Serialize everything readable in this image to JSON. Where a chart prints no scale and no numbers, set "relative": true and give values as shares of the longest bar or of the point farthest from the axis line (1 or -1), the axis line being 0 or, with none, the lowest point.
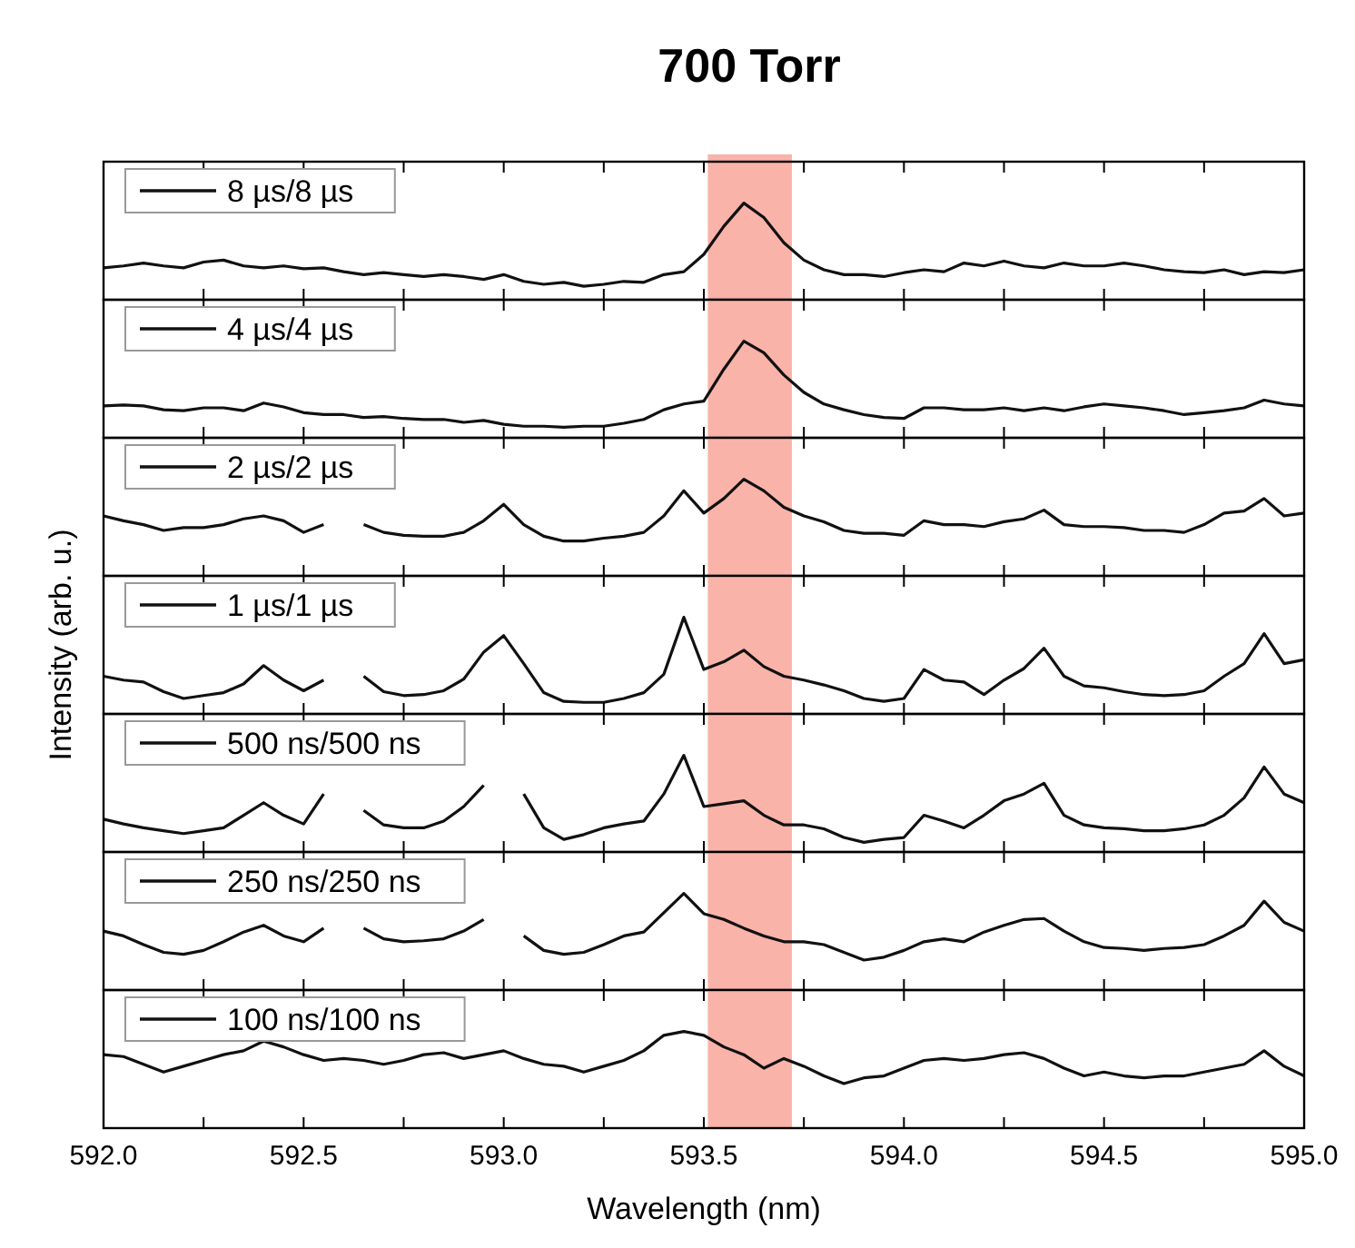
{
  "chart_data": [
    {
      "type": "line",
      "title": "700 Torr",
      "relative": true,
      "legend": "top left",
      "tick_labels": false,
      "xlim": [
        592,
        595
      ],
      "xticks": [
        {
          "value": 592,
          "label": null
        },
        {
          "value": 592.25,
          "label": null
        },
        {
          "value": 592.5,
          "label": null
        },
        {
          "value": 592.75,
          "label": null
        },
        {
          "value": 593,
          "label": null
        },
        {
          "value": 593.25,
          "label": null
        },
        {
          "value": 593.5,
          "label": null
        },
        {
          "value": 593.75,
          "label": null
        },
        {
          "value": 594,
          "label": null
        },
        {
          "value": 594.25,
          "label": null
        },
        {
          "value": 594.5,
          "label": null
        },
        {
          "value": 594.75,
          "label": null
        },
        {
          "value": 595,
          "label": null
        }
      ],
      "bands": [
        {
          "axis": "x",
          "from": 593.51,
          "to": 593.72,
          "color": "#f9b3a9"
        }
      ],
      "x": [
        592,
        592.05,
        592.1,
        592.15,
        592.2,
        592.25,
        592.3,
        592.35,
        592.4,
        592.45,
        592.5,
        592.55,
        592.6,
        592.65,
        592.7,
        592.75,
        592.8,
        592.85,
        592.9,
        592.95,
        593,
        593.05,
        593.1,
        593.15,
        593.2,
        593.25,
        593.3,
        593.35,
        593.4,
        593.45,
        593.5,
        593.55,
        593.6,
        593.65,
        593.7,
        593.75,
        593.8,
        593.85,
        593.9,
        593.95,
        594,
        594.05,
        594.1,
        594.15,
        594.2,
        594.25,
        594.3,
        594.35,
        594.4,
        594.45,
        594.5,
        594.55,
        594.6,
        594.65,
        594.7,
        594.75,
        594.8,
        594.85,
        594.9,
        594.95,
        595
      ],
      "series": [
        {
          "name": "8 µs/8 µs",
          "color": "#111111",
          "values": [
            0.33,
            0.35,
            0.38,
            0.35,
            0.33,
            0.39,
            0.41,
            0.35,
            0.33,
            0.35,
            0.32,
            0.33,
            0.29,
            0.26,
            0.28,
            0.26,
            0.24,
            0.26,
            0.24,
            0.21,
            0.26,
            0.19,
            0.16,
            0.18,
            0.14,
            0.16,
            0.19,
            0.18,
            0.26,
            0.29,
            0.47,
            0.76,
            1,
            0.85,
            0.59,
            0.41,
            0.31,
            0.26,
            0.26,
            0.24,
            0.28,
            0.31,
            0.29,
            0.38,
            0.35,
            0.4,
            0.35,
            0.33,
            0.38,
            0.35,
            0.35,
            0.38,
            0.35,
            0.31,
            0.29,
            0.28,
            0.31,
            0.26,
            0.29,
            0.28,
            0.31
          ]
        }
      ]
    },
    {
      "type": "line",
      "relative": true,
      "legend": "top left",
      "tick_labels": false,
      "xlim": [
        592,
        595
      ],
      "xticks": [
        {
          "value": 592,
          "label": null
        },
        {
          "value": 592.25,
          "label": null
        },
        {
          "value": 592.5,
          "label": null
        },
        {
          "value": 592.75,
          "label": null
        },
        {
          "value": 593,
          "label": null
        },
        {
          "value": 593.25,
          "label": null
        },
        {
          "value": 593.5,
          "label": null
        },
        {
          "value": 593.75,
          "label": null
        },
        {
          "value": 594,
          "label": null
        },
        {
          "value": 594.25,
          "label": null
        },
        {
          "value": 594.5,
          "label": null
        },
        {
          "value": 594.75,
          "label": null
        },
        {
          "value": 595,
          "label": null
        }
      ],
      "bands": [
        {
          "axis": "x",
          "from": 593.51,
          "to": 593.72,
          "color": "#f9b3a9"
        }
      ],
      "x": [
        592,
        592.05,
        592.1,
        592.15,
        592.2,
        592.25,
        592.3,
        592.35,
        592.4,
        592.45,
        592.5,
        592.55,
        592.6,
        592.65,
        592.7,
        592.75,
        592.8,
        592.85,
        592.9,
        592.95,
        593,
        593.05,
        593.1,
        593.15,
        593.2,
        593.25,
        593.3,
        593.35,
        593.4,
        593.45,
        593.5,
        593.55,
        593.6,
        593.65,
        593.7,
        593.75,
        593.8,
        593.85,
        593.9,
        593.95,
        594,
        594.05,
        594.1,
        594.15,
        594.2,
        594.25,
        594.3,
        594.35,
        594.4,
        594.45,
        594.5,
        594.55,
        594.6,
        594.65,
        594.7,
        594.75,
        594.8,
        594.85,
        594.9,
        594.95,
        595
      ],
      "series": [
        {
          "name": "4 µs/4 µs",
          "color": "#111111",
          "values": [
            0.33,
            0.34,
            0.33,
            0.29,
            0.28,
            0.31,
            0.31,
            0.28,
            0.36,
            0.32,
            0.26,
            0.24,
            0.24,
            0.21,
            0.22,
            0.2,
            0.19,
            0.19,
            0.16,
            0.18,
            0.14,
            0.12,
            0.12,
            0.11,
            0.12,
            0.12,
            0.15,
            0.19,
            0.29,
            0.35,
            0.38,
            0.71,
            1,
            0.88,
            0.65,
            0.47,
            0.35,
            0.29,
            0.24,
            0.21,
            0.2,
            0.31,
            0.31,
            0.29,
            0.29,
            0.31,
            0.28,
            0.31,
            0.28,
            0.32,
            0.35,
            0.33,
            0.31,
            0.28,
            0.24,
            0.26,
            0.28,
            0.31,
            0.39,
            0.35,
            0.33
          ]
        }
      ]
    },
    {
      "type": "line",
      "relative": true,
      "legend": "top left",
      "tick_labels": false,
      "xlim": [
        592,
        595
      ],
      "xticks": [
        {
          "value": 592,
          "label": null
        },
        {
          "value": 592.25,
          "label": null
        },
        {
          "value": 592.5,
          "label": null
        },
        {
          "value": 592.75,
          "label": null
        },
        {
          "value": 593,
          "label": null
        },
        {
          "value": 593.25,
          "label": null
        },
        {
          "value": 593.5,
          "label": null
        },
        {
          "value": 593.75,
          "label": null
        },
        {
          "value": 594,
          "label": null
        },
        {
          "value": 594.25,
          "label": null
        },
        {
          "value": 594.5,
          "label": null
        },
        {
          "value": 594.75,
          "label": null
        },
        {
          "value": 595,
          "label": null
        }
      ],
      "bands": [
        {
          "axis": "x",
          "from": 593.51,
          "to": 593.72,
          "color": "#f9b3a9"
        }
      ],
      "x": [
        592,
        592.05,
        592.1,
        592.15,
        592.2,
        592.25,
        592.3,
        592.35,
        592.4,
        592.45,
        592.5,
        592.55,
        592.6,
        592.65,
        592.7,
        592.75,
        592.8,
        592.85,
        592.9,
        592.95,
        593,
        593.05,
        593.1,
        593.15,
        593.2,
        593.25,
        593.3,
        593.35,
        593.4,
        593.45,
        593.5,
        593.55,
        593.6,
        593.65,
        593.7,
        593.75,
        593.8,
        593.85,
        593.9,
        593.95,
        594,
        594.05,
        594.1,
        594.15,
        594.2,
        594.25,
        594.3,
        594.35,
        594.4,
        594.45,
        594.5,
        594.55,
        594.6,
        594.65,
        594.7,
        594.75,
        594.8,
        594.85,
        594.9,
        594.95,
        595
      ],
      "series": [
        {
          "name": "2 µs/2 µs",
          "color": "#111111",
          "values": [
            0.62,
            0.57,
            0.53,
            0.47,
            0.5,
            0.5,
            0.53,
            0.59,
            0.62,
            0.57,
            0.45,
            0.53,
            null,
            0.53,
            0.45,
            0.42,
            0.41,
            0.41,
            0.45,
            0.57,
            0.74,
            0.53,
            0.41,
            0.36,
            0.36,
            0.39,
            0.41,
            0.45,
            0.62,
            0.88,
            0.65,
            0.8,
            1,
            0.88,
            0.71,
            0.62,
            0.56,
            0.47,
            0.44,
            0.44,
            0.42,
            0.57,
            0.53,
            0.53,
            0.51,
            0.56,
            0.59,
            0.68,
            0.53,
            0.51,
            0.51,
            0.5,
            0.47,
            0.47,
            0.45,
            0.53,
            0.65,
            0.67,
            0.8,
            0.62,
            0.65
          ]
        }
      ]
    },
    {
      "type": "line",
      "ylabel": "Intensity (arb. u.)",
      "relative": true,
      "legend": "top left",
      "tick_labels": false,
      "xlim": [
        592,
        595
      ],
      "xticks": [
        {
          "value": 592,
          "label": null
        },
        {
          "value": 592.25,
          "label": null
        },
        {
          "value": 592.5,
          "label": null
        },
        {
          "value": 592.75,
          "label": null
        },
        {
          "value": 593,
          "label": null
        },
        {
          "value": 593.25,
          "label": null
        },
        {
          "value": 593.5,
          "label": null
        },
        {
          "value": 593.75,
          "label": null
        },
        {
          "value": 594,
          "label": null
        },
        {
          "value": 594.25,
          "label": null
        },
        {
          "value": 594.5,
          "label": null
        },
        {
          "value": 594.75,
          "label": null
        },
        {
          "value": 595,
          "label": null
        }
      ],
      "bands": [
        {
          "axis": "x",
          "from": 593.51,
          "to": 593.72,
          "color": "#f9b3a9"
        }
      ],
      "x": [
        592,
        592.05,
        592.1,
        592.15,
        592.2,
        592.25,
        592.3,
        592.35,
        592.4,
        592.45,
        592.5,
        592.55,
        592.6,
        592.65,
        592.7,
        592.75,
        592.8,
        592.85,
        592.9,
        592.95,
        593,
        593.05,
        593.1,
        593.15,
        593.2,
        593.25,
        593.3,
        593.35,
        593.4,
        593.45,
        593.5,
        593.55,
        593.6,
        593.65,
        593.7,
        593.75,
        593.8,
        593.85,
        593.9,
        593.95,
        594,
        594.05,
        594.1,
        594.15,
        594.2,
        594.25,
        594.3,
        594.35,
        594.4,
        594.45,
        594.5,
        594.55,
        594.6,
        594.65,
        594.7,
        594.75,
        594.8,
        594.85,
        594.9,
        594.95,
        595
      ],
      "series": [
        {
          "name": "1 µs/1 µs",
          "color": "#111111",
          "values": [
            0.39,
            0.35,
            0.33,
            0.23,
            0.16,
            0.19,
            0.22,
            0.31,
            0.5,
            0.35,
            0.24,
            0.35,
            null,
            0.39,
            0.23,
            0.19,
            0.2,
            0.24,
            0.36,
            0.64,
            0.81,
            0.52,
            0.22,
            0.13,
            0.12,
            0.12,
            0.16,
            0.22,
            0.41,
            1,
            0.46,
            0.54,
            0.66,
            0.49,
            0.39,
            0.35,
            0.3,
            0.24,
            0.16,
            0.13,
            0.16,
            0.46,
            0.35,
            0.33,
            0.2,
            0.35,
            0.47,
            0.68,
            0.39,
            0.29,
            0.27,
            0.23,
            0.2,
            0.19,
            0.2,
            0.24,
            0.39,
            0.52,
            0.83,
            0.52,
            0.56
          ]
        }
      ]
    },
    {
      "type": "line",
      "relative": true,
      "legend": "top left",
      "tick_labels": false,
      "xlim": [
        592,
        595
      ],
      "xticks": [
        {
          "value": 592,
          "label": null
        },
        {
          "value": 592.25,
          "label": null
        },
        {
          "value": 592.5,
          "label": null
        },
        {
          "value": 592.75,
          "label": null
        },
        {
          "value": 593,
          "label": null
        },
        {
          "value": 593.25,
          "label": null
        },
        {
          "value": 593.5,
          "label": null
        },
        {
          "value": 593.75,
          "label": null
        },
        {
          "value": 594,
          "label": null
        },
        {
          "value": 594.25,
          "label": null
        },
        {
          "value": 594.5,
          "label": null
        },
        {
          "value": 594.75,
          "label": null
        },
        {
          "value": 595,
          "label": null
        }
      ],
      "bands": [
        {
          "axis": "x",
          "from": 593.51,
          "to": 593.72,
          "color": "#f9b3a9"
        }
      ],
      "x": [
        592,
        592.05,
        592.1,
        592.15,
        592.2,
        592.25,
        592.3,
        592.35,
        592.4,
        592.45,
        592.5,
        592.55,
        592.6,
        592.65,
        592.7,
        592.75,
        592.8,
        592.85,
        592.9,
        592.95,
        593,
        593.05,
        593.1,
        593.15,
        593.2,
        593.25,
        593.3,
        593.35,
        593.4,
        593.45,
        593.5,
        593.55,
        593.6,
        593.65,
        593.7,
        593.75,
        593.8,
        593.85,
        593.9,
        593.95,
        594,
        594.05,
        594.1,
        594.15,
        594.2,
        594.25,
        594.3,
        594.35,
        594.4,
        594.45,
        594.5,
        594.55,
        594.6,
        594.65,
        594.7,
        594.75,
        594.8,
        594.85,
        594.9,
        594.95,
        595
      ],
      "series": [
        {
          "name": "500 ns/500 ns",
          "color": "#111111",
          "values": [
            0.34,
            0.29,
            0.25,
            0.22,
            0.19,
            0.22,
            0.25,
            0.38,
            0.51,
            0.38,
            0.29,
            0.6,
            null,
            0.43,
            0.28,
            0.25,
            0.25,
            0.32,
            0.47,
            0.69,
            null,
            0.6,
            0.25,
            0.13,
            0.18,
            0.25,
            0.29,
            0.32,
            0.6,
            1,
            0.47,
            0.5,
            0.53,
            0.38,
            0.28,
            0.28,
            0.24,
            0.15,
            0.1,
            0.13,
            0.15,
            0.38,
            0.32,
            0.25,
            0.38,
            0.53,
            0.6,
            0.71,
            0.38,
            0.28,
            0.25,
            0.24,
            0.22,
            0.22,
            0.24,
            0.28,
            0.38,
            0.56,
            0.88,
            0.6,
            0.51
          ]
        }
      ]
    },
    {
      "type": "line",
      "relative": true,
      "legend": "top left",
      "tick_labels": false,
      "xlim": [
        592,
        595
      ],
      "xticks": [
        {
          "value": 592,
          "label": null
        },
        {
          "value": 592.25,
          "label": null
        },
        {
          "value": 592.5,
          "label": null
        },
        {
          "value": 592.75,
          "label": null
        },
        {
          "value": 593,
          "label": null
        },
        {
          "value": 593.25,
          "label": null
        },
        {
          "value": 593.5,
          "label": null
        },
        {
          "value": 593.75,
          "label": null
        },
        {
          "value": 594,
          "label": null
        },
        {
          "value": 594.25,
          "label": null
        },
        {
          "value": 594.5,
          "label": null
        },
        {
          "value": 594.75,
          "label": null
        },
        {
          "value": 595,
          "label": null
        }
      ],
      "bands": [
        {
          "axis": "x",
          "from": 593.51,
          "to": 593.72,
          "color": "#f9b3a9"
        }
      ],
      "x": [
        592,
        592.05,
        592.1,
        592.15,
        592.2,
        592.25,
        592.3,
        592.35,
        592.4,
        592.45,
        592.5,
        592.55,
        592.6,
        592.65,
        592.7,
        592.75,
        592.8,
        592.85,
        592.9,
        592.95,
        593,
        593.05,
        593.1,
        593.15,
        593.2,
        593.25,
        593.3,
        593.35,
        593.4,
        593.45,
        593.5,
        593.55,
        593.6,
        593.65,
        593.7,
        593.75,
        593.8,
        593.85,
        593.9,
        593.95,
        594,
        594.05,
        594.1,
        594.15,
        594.2,
        594.25,
        594.3,
        594.35,
        594.4,
        594.45,
        594.5,
        594.55,
        594.6,
        594.65,
        594.7,
        594.75,
        594.8,
        594.85,
        594.9,
        594.95,
        595
      ],
      "series": [
        {
          "name": "250 ns/250 ns",
          "color": "#111111",
          "values": [
            0.61,
            0.56,
            0.47,
            0.39,
            0.37,
            0.41,
            0.5,
            0.6,
            0.67,
            0.56,
            0.5,
            0.64,
            null,
            0.64,
            0.53,
            0.5,
            0.51,
            0.53,
            0.61,
            0.73,
            null,
            0.56,
            0.41,
            0.37,
            0.39,
            0.47,
            0.56,
            0.6,
            0.8,
            1,
            0.79,
            0.73,
            0.64,
            0.56,
            0.5,
            0.5,
            0.47,
            0.39,
            0.31,
            0.34,
            0.41,
            0.5,
            0.53,
            0.5,
            0.6,
            0.67,
            0.73,
            0.74,
            0.61,
            0.5,
            0.44,
            0.43,
            0.41,
            0.43,
            0.44,
            0.47,
            0.56,
            0.67,
            0.92,
            0.7,
            0.61
          ]
        }
      ]
    },
    {
      "type": "line",
      "xlabel": "Wavelength (nm)",
      "relative": true,
      "legend": "top left",
      "tick_labels": "x",
      "xlim": [
        592,
        595
      ],
      "xticks": [
        {
          "value": 592,
          "label": "592.0"
        },
        {
          "value": 592.25,
          "label": null
        },
        {
          "value": 592.5,
          "label": "592.5"
        },
        {
          "value": 592.75,
          "label": null
        },
        {
          "value": 593,
          "label": "593.0"
        },
        {
          "value": 593.25,
          "label": null
        },
        {
          "value": 593.5,
          "label": "593.5"
        },
        {
          "value": 593.75,
          "label": null
        },
        {
          "value": 594,
          "label": "594.0"
        },
        {
          "value": 594.25,
          "label": null
        },
        {
          "value": 594.5,
          "label": "594.5"
        },
        {
          "value": 594.75,
          "label": null
        },
        {
          "value": 595,
          "label": "595.0"
        }
      ],
      "bands": [
        {
          "axis": "x",
          "from": 593.51,
          "to": 593.72,
          "color": "#f9b3a9"
        }
      ],
      "x": [
        592,
        592.05,
        592.1,
        592.15,
        592.2,
        592.25,
        592.3,
        592.35,
        592.4,
        592.45,
        592.5,
        592.55,
        592.6,
        592.65,
        592.7,
        592.75,
        592.8,
        592.85,
        592.9,
        592.95,
        593,
        593.05,
        593.1,
        593.15,
        593.2,
        593.25,
        593.3,
        593.35,
        593.4,
        593.45,
        593.5,
        593.55,
        593.6,
        593.65,
        593.7,
        593.75,
        593.8,
        593.85,
        593.9,
        593.95,
        594,
        594.05,
        594.1,
        594.15,
        594.2,
        594.25,
        594.3,
        594.35,
        594.4,
        594.45,
        594.5,
        594.55,
        594.6,
        594.65,
        594.7,
        594.75,
        594.8,
        594.85,
        594.9,
        594.95,
        595
      ],
      "series": [
        {
          "name": "100 ns/100 ns",
          "color": "#111111",
          "values": [
            0.76,
            0.74,
            0.66,
            0.58,
            0.64,
            0.7,
            0.76,
            0.8,
            0.9,
            0.84,
            0.76,
            0.7,
            0.72,
            0.7,
            0.66,
            0.7,
            0.76,
            0.78,
            0.72,
            0.76,
            0.8,
            0.72,
            0.66,
            0.64,
            0.58,
            0.64,
            0.7,
            0.8,
            0.96,
            1,
            0.96,
            0.84,
            0.76,
            0.62,
            0.72,
            0.64,
            0.54,
            0.46,
            0.52,
            0.54,
            0.62,
            0.7,
            0.72,
            0.7,
            0.72,
            0.76,
            0.78,
            0.72,
            0.62,
            0.54,
            0.58,
            0.54,
            0.52,
            0.54,
            0.54,
            0.58,
            0.62,
            0.66,
            0.8,
            0.64,
            0.54
          ]
        }
      ]
    }
  ]
}
